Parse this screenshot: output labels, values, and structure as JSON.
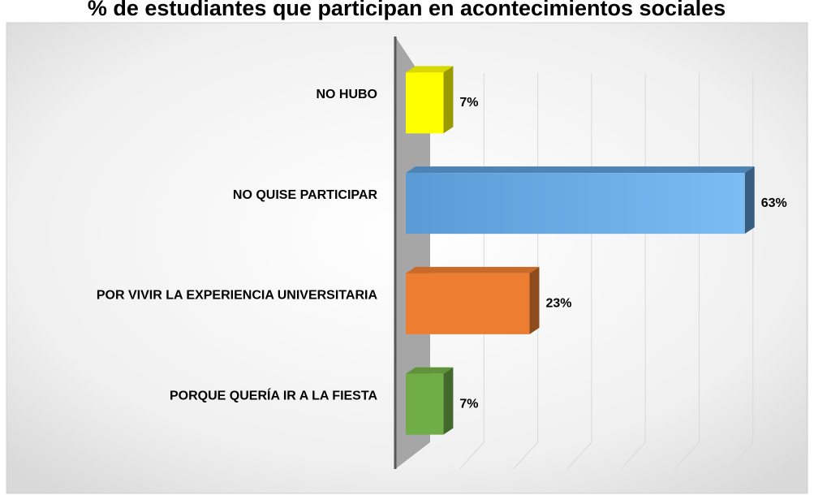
{
  "chart_data": {
    "type": "bar",
    "orientation": "horizontal",
    "title": "% de estudiantes que participan en acontecimientos sociales",
    "categories": [
      "NO HUBO",
      "NO QUISE PARTICIPAR",
      "POR VIVIR LA EXPERIENCIA UNIVERSITARIA",
      "PORQUE QUERÍA IR A LA FIESTA"
    ],
    "values": [
      7,
      63,
      23,
      7
    ],
    "value_labels": [
      "7%",
      "63%",
      "23%",
      "7%"
    ],
    "colors": [
      "#ffff00",
      "#5b9bd5",
      "#ed7d31",
      "#70ad47"
    ],
    "xlim": [
      0,
      70
    ],
    "xticks": [
      0,
      10,
      20,
      30,
      40,
      50,
      60,
      70
    ],
    "grid": true
  }
}
